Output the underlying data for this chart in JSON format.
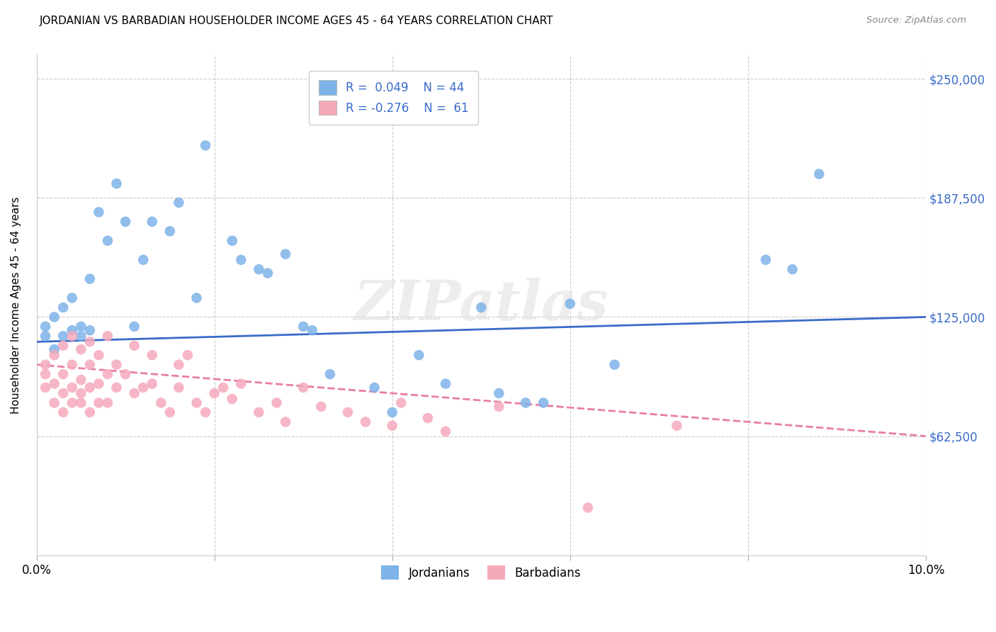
{
  "title": "JORDANIAN VS BARBADIAN HOUSEHOLDER INCOME AGES 45 - 64 YEARS CORRELATION CHART",
  "source": "Source: ZipAtlas.com",
  "ylabel": "Householder Income Ages 45 - 64 years",
  "xlim": [
    0,
    0.1
  ],
  "ylim": [
    0,
    262500
  ],
  "yticks": [
    62500,
    125000,
    187500,
    250000
  ],
  "ytick_labels": [
    "$62,500",
    "$125,000",
    "$187,500",
    "$250,000"
  ],
  "xticks": [
    0.0,
    0.02,
    0.04,
    0.06,
    0.08,
    0.1
  ],
  "xtick_labels": [
    "0.0%",
    "",
    "",
    "",
    "",
    "10.0%"
  ],
  "blue_color": "#7EB3E8",
  "pink_color": "#F5AABC",
  "trend_blue_color": "#3A6BC9",
  "trend_pink_color": "#E87FA0",
  "label_color": "#3A6BC9",
  "watermark": "ZIPatlas",
  "blue_trend_x0": 0.0,
  "blue_trend_y0": 112000,
  "blue_trend_x1": 0.1,
  "blue_trend_y1": 125000,
  "pink_trend_x0": 0.0,
  "pink_trend_y0": 100000,
  "pink_trend_x1": 0.1,
  "pink_trend_y1": 62500,
  "jordanians_x": [
    0.001,
    0.001,
    0.002,
    0.002,
    0.003,
    0.003,
    0.004,
    0.004,
    0.005,
    0.005,
    0.006,
    0.006,
    0.007,
    0.008,
    0.009,
    0.01,
    0.011,
    0.012,
    0.013,
    0.015,
    0.016,
    0.018,
    0.019,
    0.022,
    0.023,
    0.025,
    0.026,
    0.028,
    0.03,
    0.031,
    0.033,
    0.038,
    0.04,
    0.043,
    0.046,
    0.05,
    0.052,
    0.055,
    0.057,
    0.06,
    0.065,
    0.082,
    0.085,
    0.088
  ],
  "jordanians_y": [
    115000,
    120000,
    108000,
    125000,
    115000,
    130000,
    118000,
    135000,
    120000,
    115000,
    145000,
    118000,
    180000,
    165000,
    195000,
    175000,
    120000,
    155000,
    175000,
    170000,
    185000,
    135000,
    215000,
    165000,
    155000,
    150000,
    148000,
    158000,
    120000,
    118000,
    95000,
    88000,
    75000,
    105000,
    90000,
    130000,
    85000,
    80000,
    80000,
    132000,
    100000,
    155000,
    150000,
    200000
  ],
  "barbadians_x": [
    0.001,
    0.001,
    0.001,
    0.002,
    0.002,
    0.002,
    0.003,
    0.003,
    0.003,
    0.003,
    0.004,
    0.004,
    0.004,
    0.004,
    0.005,
    0.005,
    0.005,
    0.005,
    0.006,
    0.006,
    0.006,
    0.006,
    0.007,
    0.007,
    0.007,
    0.008,
    0.008,
    0.008,
    0.009,
    0.009,
    0.01,
    0.011,
    0.011,
    0.012,
    0.013,
    0.013,
    0.014,
    0.015,
    0.016,
    0.016,
    0.017,
    0.018,
    0.019,
    0.02,
    0.021,
    0.022,
    0.023,
    0.025,
    0.027,
    0.028,
    0.03,
    0.032,
    0.035,
    0.037,
    0.04,
    0.041,
    0.044,
    0.046,
    0.052,
    0.062,
    0.072
  ],
  "barbadians_y": [
    95000,
    100000,
    88000,
    90000,
    105000,
    80000,
    85000,
    95000,
    110000,
    75000,
    88000,
    100000,
    80000,
    115000,
    92000,
    85000,
    108000,
    80000,
    88000,
    100000,
    112000,
    75000,
    90000,
    105000,
    80000,
    80000,
    95000,
    115000,
    88000,
    100000,
    95000,
    85000,
    110000,
    88000,
    90000,
    105000,
    80000,
    75000,
    88000,
    100000,
    105000,
    80000,
    75000,
    85000,
    88000,
    82000,
    90000,
    75000,
    80000,
    70000,
    88000,
    78000,
    75000,
    70000,
    68000,
    80000,
    72000,
    65000,
    78000,
    25000,
    68000
  ]
}
